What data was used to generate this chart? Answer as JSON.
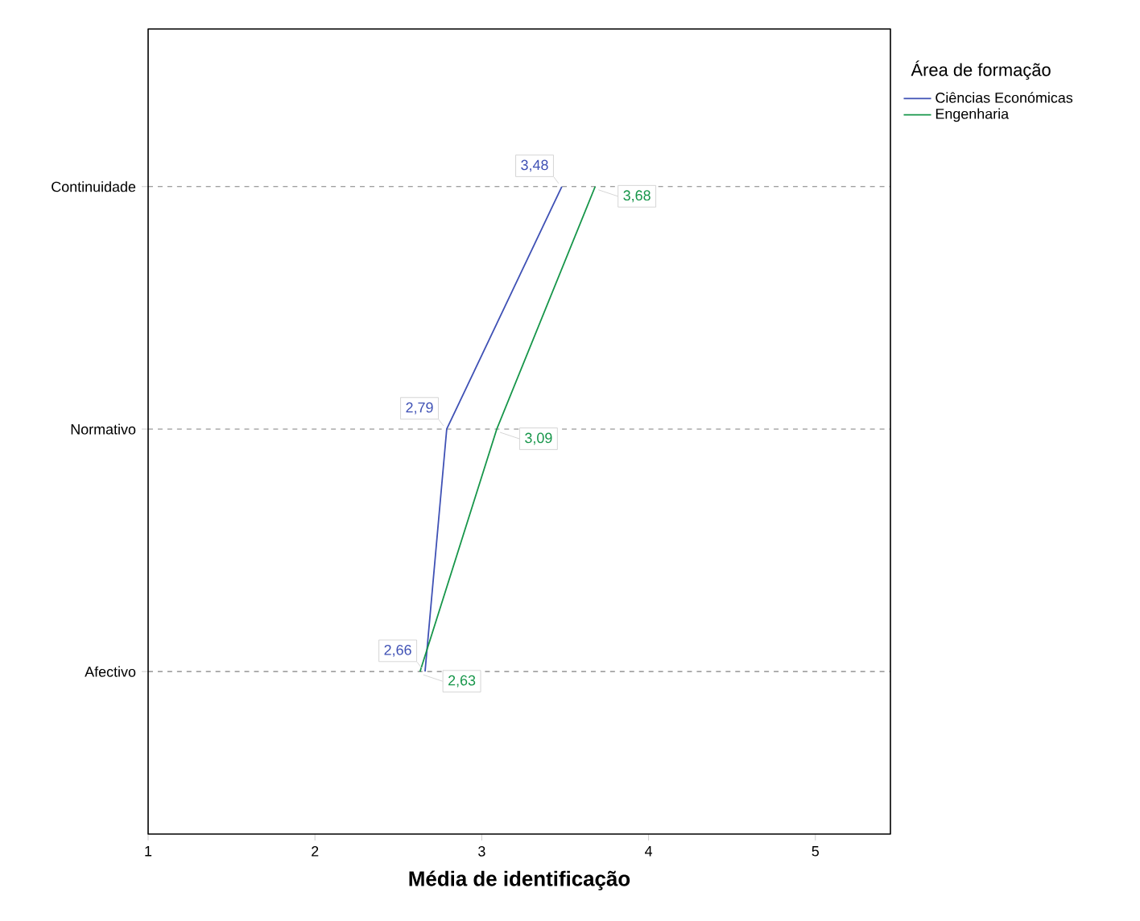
{
  "chart_data": {
    "type": "line",
    "orientation": "horizontal",
    "xlabel": "Média de identificação",
    "legend_title": "Área de formação",
    "categories": [
      "Continuidade",
      "Normativo",
      "Afectivo"
    ],
    "series": [
      {
        "name": "Ciências Económicas",
        "color": "#3f51b5",
        "values": [
          3.48,
          2.79,
          2.66
        ],
        "value_labels": [
          "3,48",
          "2,79",
          "2,66"
        ]
      },
      {
        "name": "Engenharia",
        "color": "#17964a",
        "values": [
          3.68,
          3.09,
          2.63
        ],
        "value_labels": [
          "3,68",
          "3,09",
          "2,63"
        ]
      }
    ],
    "xlim": [
      1,
      5.45
    ],
    "xticks": [
      1,
      2,
      3,
      4,
      5
    ],
    "grid": "y",
    "legend": "top right",
    "line_style": "solid"
  }
}
